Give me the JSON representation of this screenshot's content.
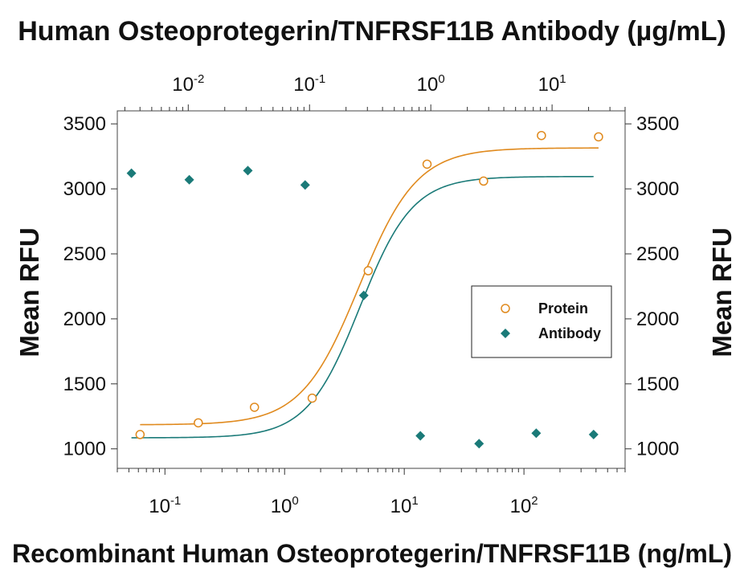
{
  "chart_data": {
    "type": "scatter",
    "title": "Human Osteoprotegerin/TNFRSF11B Antibody (µg/mL)",
    "xlabel": "Recombinant Human Osteoprotegerin/TNFRSF11B (ng/mL)",
    "ylabel": "Mean RFU",
    "ylabel_right": "Mean RFU",
    "x_scale": "log",
    "x_range": [
      0.04,
      700
    ],
    "x_ticks": [
      {
        "value": 0.1,
        "base": "10",
        "exp": "-1"
      },
      {
        "value": 1,
        "base": "10",
        "exp": "0"
      },
      {
        "value": 10,
        "base": "10",
        "exp": "1"
      },
      {
        "value": 100,
        "base": "10",
        "exp": "2"
      }
    ],
    "x2_scale": "log",
    "x2_range": [
      0.0026,
      40
    ],
    "x2_ticks": [
      {
        "value": 0.01,
        "base": "10",
        "exp": "-2"
      },
      {
        "value": 0.1,
        "base": "10",
        "exp": "-1"
      },
      {
        "value": 1,
        "base": "10",
        "exp": "0"
      },
      {
        "value": 10,
        "base": "10",
        "exp": "1"
      }
    ],
    "ylim": [
      850,
      3600
    ],
    "y_ticks": [
      1000,
      1500,
      2000,
      2500,
      3000,
      3500
    ],
    "legend_position": "right",
    "series": [
      {
        "name": "Protein",
        "axis": "bottom",
        "marker": "open-circle",
        "color": "#E08A1E",
        "x": [
          0.062,
          0.19,
          0.56,
          1.7,
          5.0,
          15.5,
          46,
          140,
          420
        ],
        "y": [
          1110,
          1200,
          1320,
          1390,
          2370,
          3190,
          3060,
          3410,
          3400
        ],
        "fit": {
          "bottom": 1185,
          "top": 3315,
          "ec50": 4.2,
          "hill": 1.8
        }
      },
      {
        "name": "Antibody",
        "axis": "top",
        "marker": "filled-diamond",
        "color": "#1A7A78",
        "x": [
          0.0034,
          0.0102,
          0.031,
          0.092,
          0.28,
          0.82,
          2.5,
          7.4,
          22
        ],
        "y": [
          3120,
          3070,
          3140,
          3030,
          2180,
          1100,
          1040,
          1120,
          1110
        ],
        "fit": {
          "bottom": 1085,
          "top": 3095,
          "ec50": 0.26,
          "hill": 2.0
        }
      }
    ]
  }
}
